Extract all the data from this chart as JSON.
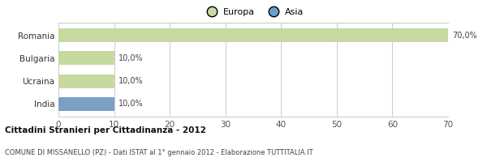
{
  "categories": [
    "Romania",
    "Bulgaria",
    "Ucraina",
    "India"
  ],
  "values": [
    70.0,
    10.0,
    10.0,
    10.0
  ],
  "colors": [
    "#c5d9a0",
    "#c5d9a0",
    "#c5d9a0",
    "#7aa0c4"
  ],
  "bar_labels": [
    "70,0%",
    "10,0%",
    "10,0%",
    "10,0%"
  ],
  "legend_labels": [
    "Europa",
    "Asia"
  ],
  "legend_colors": [
    "#c5d9a0",
    "#6b9ec8"
  ],
  "xlim": [
    0,
    70
  ],
  "xticks": [
    0,
    10,
    20,
    30,
    40,
    50,
    60,
    70
  ],
  "title": "Cittadini Stranieri per Cittadinanza - 2012",
  "subtitle": "COMUNE DI MISSANELLO (PZ) - Dati ISTAT al 1° gennaio 2012 - Elaborazione TUTTITALIA.IT",
  "background_color": "#ffffff",
  "grid_color": "#cccccc",
  "bar_height": 0.6
}
